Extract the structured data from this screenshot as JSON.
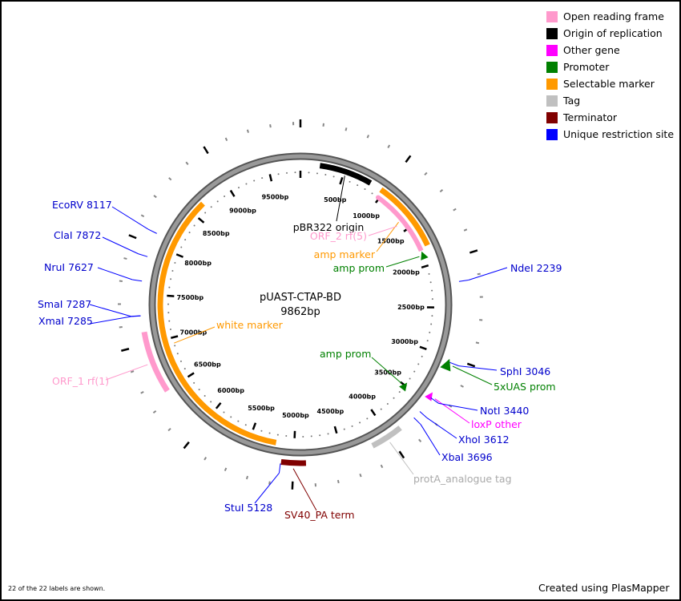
{
  "plasmid": {
    "name": "pUAST-CTAP-BD",
    "length_label": "9862bp",
    "length": 9862
  },
  "legend": [
    {
      "label": "Open reading frame",
      "color": "#ff99cc"
    },
    {
      "label": "Origin of replication",
      "color": "#000000"
    },
    {
      "label": "Other gene",
      "color": "#ff00ff"
    },
    {
      "label": "Promoter",
      "color": "#008000"
    },
    {
      "label": "Selectable marker",
      "color": "#ff9900"
    },
    {
      "label": "Tag",
      "color": "#c0c0c0"
    },
    {
      "label": "Terminator",
      "color": "#800000"
    },
    {
      "label": "Unique restriction site",
      "color": "#0000ff"
    }
  ],
  "features": [
    {
      "label": "pBR322 origin",
      "start": 219,
      "end": 822,
      "color": "#000000",
      "ring": "outer"
    },
    {
      "label": "amp marker",
      "start": 959,
      "end": 1781,
      "color": "#ff9900",
      "ring": "outer"
    },
    {
      "label": "ORF_2 rf(5)",
      "start": 986,
      "end": 1808,
      "color": "#ff99cc",
      "ring": "inner",
      "arrow": "ccw"
    },
    {
      "label": "amp prom",
      "start": 1840,
      "end": 1890,
      "color": "#008000",
      "ring": "inner",
      "arrow": "ccw"
    },
    {
      "label": "amp prom",
      "start": 3480,
      "end": 3530,
      "color": "#008000",
      "ring": "inner",
      "arrow": "ccw"
    },
    {
      "label": "white marker",
      "start": 5205,
      "end": 8657,
      "color": "#ff9900",
      "ring": "outer"
    },
    {
      "label": "ORF_1 rf(1)",
      "start": 6493,
      "end": 7123,
      "color": "#ff99cc",
      "ring": "out2"
    },
    {
      "label": "protA_analogue tag",
      "start": 3863,
      "end": 4191,
      "color": "#c0c0c0",
      "ring": "out2"
    },
    {
      "label": "SV40_PA term",
      "start": 4876,
      "end": 5123,
      "color": "#800000",
      "ring": "out2"
    },
    {
      "label": "5xUAS prom",
      "start": 3030,
      "end": 3110,
      "color": "#008000",
      "ring": "out2",
      "arrow": "ccw"
    },
    {
      "label": "loxP other",
      "start": 3400,
      "end": 3450,
      "color": "#ff00ff",
      "ring": "out2",
      "arrow": "ccw"
    }
  ],
  "sites": [
    {
      "label": "NdeI 2239",
      "pos": 2239
    },
    {
      "label": "SphI 3046",
      "pos": 3046
    },
    {
      "label": "NotI 3440",
      "pos": 3440
    },
    {
      "label": "XhoI 3612",
      "pos": 3612
    },
    {
      "label": "XbaI 3696",
      "pos": 3696
    },
    {
      "label": "StuI 5128",
      "pos": 5128
    },
    {
      "label": "SmaI 7287",
      "pos": 7287
    },
    {
      "label": "XmaI 7285",
      "pos": 7285
    },
    {
      "label": "NruI 7627",
      "pos": 7627
    },
    {
      "label": "ClaI 7872",
      "pos": 7872
    },
    {
      "label": "EcoRV 8117",
      "pos": 8117
    }
  ],
  "footer": {
    "labels_shown": "22 of the 22 labels are shown.",
    "credit": "Created using PlasMapper"
  }
}
